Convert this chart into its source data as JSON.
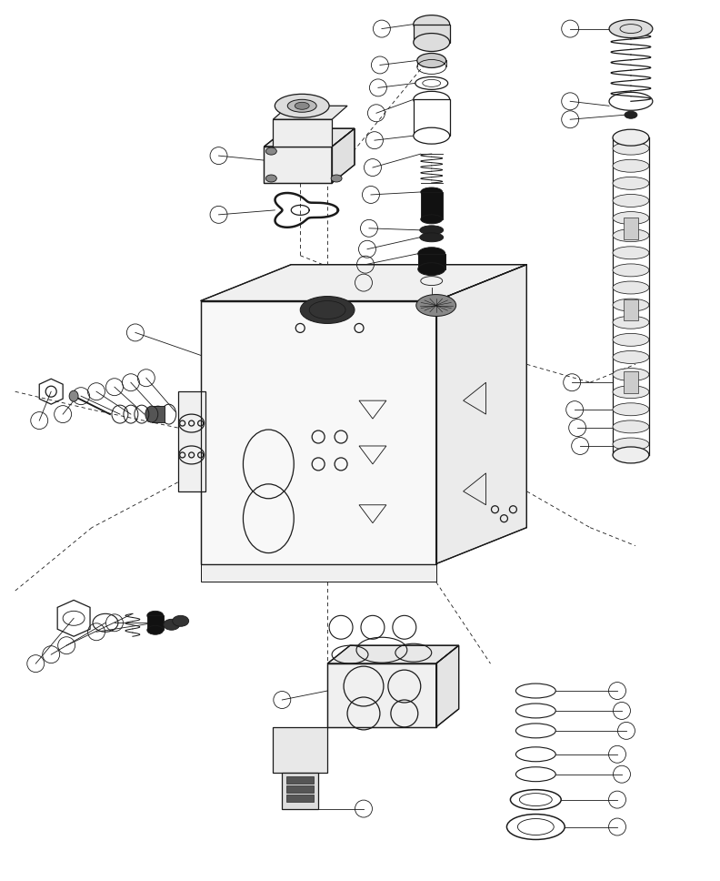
{
  "background_color": "#ffffff",
  "line_color": "#1a1a1a",
  "figsize": [
    7.92,
    9.68
  ],
  "dpi": 100,
  "lw": 0.9,
  "clw": 0.6,
  "cr": 0.012
}
